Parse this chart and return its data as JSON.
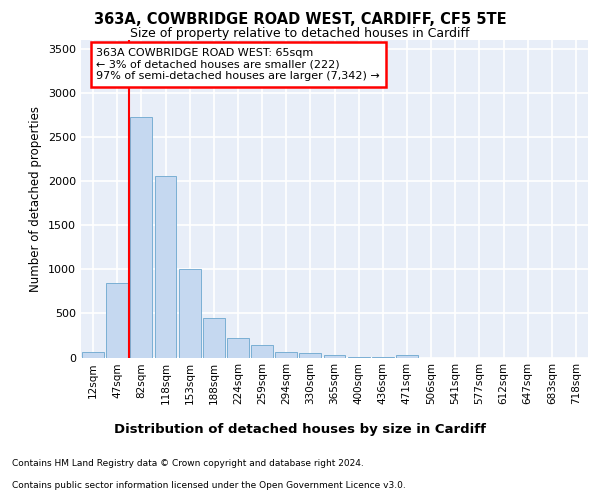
{
  "title_line1": "363A, COWBRIDGE ROAD WEST, CARDIFF, CF5 5TE",
  "title_line2": "Size of property relative to detached houses in Cardiff",
  "xlabel": "Distribution of detached houses by size in Cardiff",
  "ylabel": "Number of detached properties",
  "categories": [
    "12sqm",
    "47sqm",
    "82sqm",
    "118sqm",
    "153sqm",
    "188sqm",
    "224sqm",
    "259sqm",
    "294sqm",
    "330sqm",
    "365sqm",
    "400sqm",
    "436sqm",
    "471sqm",
    "506sqm",
    "541sqm",
    "577sqm",
    "612sqm",
    "647sqm",
    "683sqm",
    "718sqm"
  ],
  "values": [
    60,
    850,
    2730,
    2060,
    1000,
    450,
    220,
    145,
    65,
    50,
    30,
    10,
    5,
    25,
    0,
    0,
    0,
    0,
    0,
    0,
    0
  ],
  "bar_color": "#c5d8f0",
  "bar_edge_color": "#7aafd4",
  "annotation_box_text_line1": "363A COWBRIDGE ROAD WEST: 65sqm",
  "annotation_box_text_line2": "← 3% of detached houses are smaller (222)",
  "annotation_box_text_line3": "97% of semi-detached houses are larger (7,342) →",
  "red_line_x": 1.5,
  "ylim": [
    0,
    3600
  ],
  "yticks": [
    0,
    500,
    1000,
    1500,
    2000,
    2500,
    3000,
    3500
  ],
  "background_color": "#e8eef8",
  "grid_color": "#ffffff",
  "footer_line1": "Contains HM Land Registry data © Crown copyright and database right 2024.",
  "footer_line2": "Contains public sector information licensed under the Open Government Licence v3.0."
}
